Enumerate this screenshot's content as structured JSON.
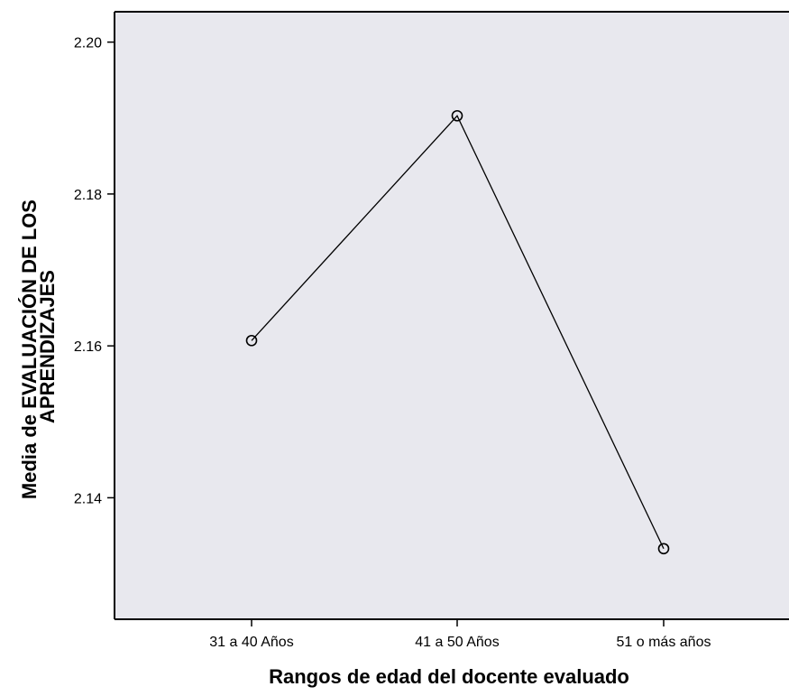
{
  "chart_data": {
    "type": "line",
    "title": "",
    "xlabel": "Rangos de edad del docente evaluado",
    "ylabel_lines": [
      "Media de EVALUACIÓN DE LOS",
      "APRENDIZAJES"
    ],
    "categories": [
      "31 a 40 Años",
      "41 a 50 Años",
      "51 o más años"
    ],
    "series": [
      {
        "name": "",
        "values": [
          2.1607,
          2.1903,
          2.1333
        ]
      }
    ],
    "yticks": [
      2.14,
      2.16,
      2.18,
      2.2
    ],
    "ytick_labels": [
      "2.14",
      "2.16",
      "2.18",
      "2.20"
    ],
    "ylim": [
      2.124,
      2.204
    ],
    "grid": false,
    "legend": "none",
    "marker": "open-circle",
    "colors": {
      "plot_background": "#e8e8ee",
      "line": "#000000",
      "axis": "#000000"
    }
  }
}
